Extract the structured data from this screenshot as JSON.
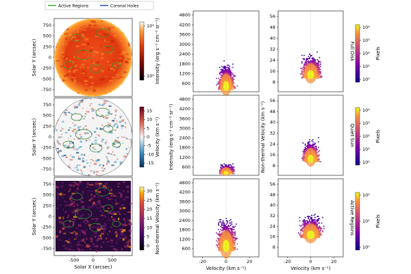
{
  "legend": {
    "items": [
      {
        "label": "Active Regions",
        "color": "#2ca02c"
      },
      {
        "label": "Coronal Holes",
        "color": "#1f3fa8"
      }
    ],
    "placement": "top-left"
  },
  "maps": {
    "xlabel": "Solar X (arcsec)",
    "ylabel": "Solar Y (arcsec)",
    "xticks": [
      "-500",
      "0",
      "500"
    ],
    "yticks": [
      "750",
      "500",
      "250",
      "0",
      "-250",
      "-500",
      "-750"
    ],
    "panels": [
      {
        "id": "intensity",
        "colorbar_label": "Intensity (erg s⁻¹ cm⁻² sr⁻¹)",
        "colorbar_ticks": [
          "10³",
          "10²"
        ],
        "colormap": "solar-red"
      },
      {
        "id": "velocity",
        "colorbar_label": "Velocity (km s⁻¹)",
        "colorbar_ticks": [
          "15",
          "10",
          "5",
          "0",
          "-5",
          "-10",
          "-15"
        ],
        "colormap": "red-white-blue"
      },
      {
        "id": "nonthermal",
        "colorbar_label": "Non-thermal Velocity (km s⁻¹)",
        "colorbar_ticks": [
          "30",
          "25",
          "20",
          "15",
          "10",
          "5",
          "0"
        ],
        "colormap": "inferno"
      }
    ]
  },
  "histograms": {
    "col1_ylabel": "Intensity (erg s⁻¹ cm⁻² sr⁻¹)",
    "col2_ylabel": "Non-thermal Velocity (km s⁻¹)",
    "xlabel": "Velocity (km s⁻¹)",
    "xticks": [
      "-20",
      "0",
      "20"
    ],
    "col1_yticks": [
      "4800",
      "4200",
      "3600",
      "3000",
      "2400",
      "1800",
      "1200",
      "600"
    ],
    "col2_yticks": [
      "56",
      "48",
      "40",
      "32",
      "24",
      "16",
      "8"
    ],
    "colorbar_label": "Pixels",
    "rows": [
      {
        "row_label": "Full Disk",
        "colorbar_ticks": [
          "10⁴",
          "10³",
          "10²",
          "10¹",
          "10⁰"
        ]
      },
      {
        "row_label": "Quiet Sun",
        "colorbar_ticks": [
          "10⁴",
          "10³",
          "10²",
          "10¹",
          "10⁰"
        ]
      },
      {
        "row_label": "Active Regions",
        "colorbar_ticks": [
          "10²",
          "10¹",
          "10⁰"
        ]
      }
    ]
  },
  "chart_data": {
    "type": "heatmap",
    "x_axis": {
      "label": "Velocity (km s⁻¹)",
      "range": [
        -28,
        28
      ]
    },
    "series": [
      {
        "row": "Full Disk",
        "col": "intensity",
        "center": [
          0,
          450
        ],
        "spread": [
          6,
          1300
        ],
        "ylim": [
          300,
          5000
        ]
      },
      {
        "row": "Full Disk",
        "col": "nonthermal",
        "center": [
          0,
          12
        ],
        "spread": [
          7,
          14
        ],
        "ylim": [
          2,
          58
        ]
      },
      {
        "row": "Quiet Sun",
        "col": "intensity",
        "center": [
          0,
          420
        ],
        "spread": [
          5,
          500
        ],
        "ylim": [
          300,
          5000
        ]
      },
      {
        "row": "Quiet Sun",
        "col": "nonthermal",
        "center": [
          0,
          12
        ],
        "spread": [
          6,
          13
        ],
        "ylim": [
          2,
          58
        ]
      },
      {
        "row": "Active Regions",
        "col": "intensity",
        "center": [
          0,
          700
        ],
        "spread": [
          7,
          1700
        ],
        "ylim": [
          300,
          5000
        ]
      },
      {
        "row": "Active Regions",
        "col": "nonthermal",
        "center": [
          0,
          16
        ],
        "spread": [
          8,
          14
        ],
        "ylim": [
          2,
          58
        ]
      }
    ]
  }
}
